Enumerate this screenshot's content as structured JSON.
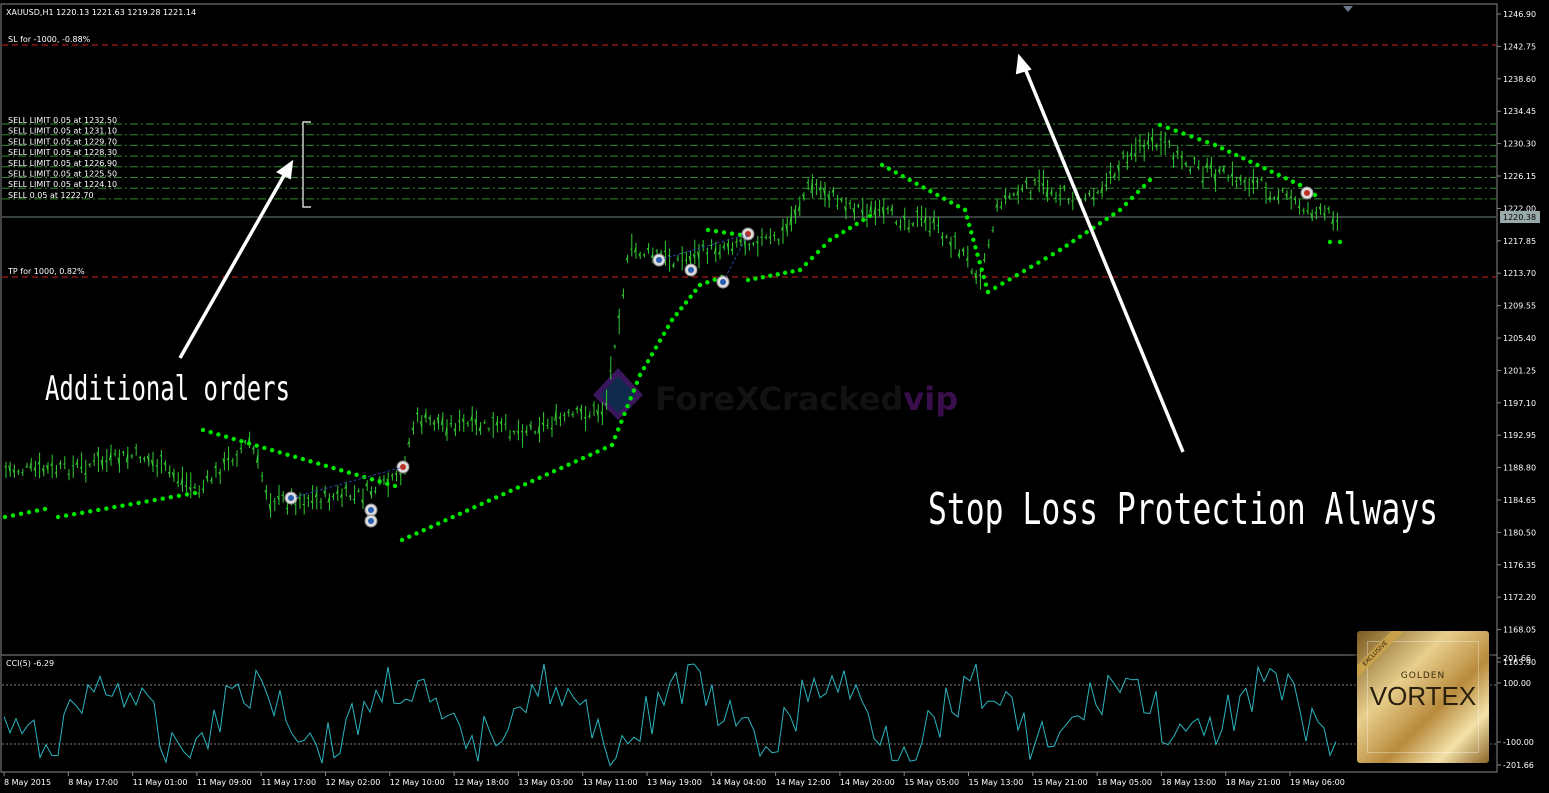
{
  "header": {
    "symbol_info": "XAUUSD,H1  1220.13 1221.63 1219.28 1221.14",
    "sl_label": "SL for -1000, -0.88%",
    "tp_label": "TP for 1000, 0.82%"
  },
  "orders": [
    "SELL LIMIT 0.05 at 1232.50",
    "SELL LIMIT 0.05 at 1231.10",
    "SELL LIMIT 0.05 at 1229.70",
    "SELL LIMIT 0.05 at 1228.30",
    "SELL LIMIT 0.05 at 1226.90",
    "SELL LIMIT 0.05 at 1225.50",
    "SELL LIMIT 0.05 at 1224.10",
    "SELL 0.05 at 1222.70"
  ],
  "price_axis": [
    "1246.90",
    "1242.75",
    "1238.60",
    "1234.45",
    "1230.30",
    "1226.15",
    "1222.00",
    "1217.85",
    "1213.70",
    "1209.55",
    "1205.40",
    "1201.25",
    "1197.10",
    "1192.95",
    "1188.80",
    "1184.65",
    "1180.50",
    "1176.35",
    "1172.20",
    "1168.05",
    "1163.90"
  ],
  "current_price": "1220.38",
  "sub_panel": {
    "label": "CCI(5) -6.29",
    "axis": [
      "201.66",
      "100.00",
      "-100.00",
      "-201.66"
    ]
  },
  "time_axis": [
    "8 May 2015",
    "8 May 17:00",
    "11 May 01:00",
    "11 May 09:00",
    "11 May 17:00",
    "12 May 02:00",
    "12 May 10:00",
    "12 May 18:00",
    "13 May 03:00",
    "13 May 11:00",
    "13 May 19:00",
    "14 May 04:00",
    "14 May 12:00",
    "14 May 20:00",
    "15 May 05:00",
    "15 May 13:00",
    "15 May 21:00",
    "18 May 05:00",
    "18 May 13:00",
    "18 May 21:00",
    "19 May 06:00"
  ],
  "annotations": {
    "left": "Additional orders",
    "right": "Stop Loss Protection Always"
  },
  "watermark": {
    "part1": "ForeXCracked",
    "part2": "vip"
  },
  "badge": {
    "ribbon": "EXCLUSIVE",
    "line1": "GOLDEN",
    "line2": "VORTEX"
  },
  "colors": {
    "candle": "#33cc33",
    "sar": "#00e600",
    "order_line": "#2e8b2e",
    "sl_tp_line": "#cc2222",
    "cci": "#2bb5c0",
    "watermark_purple": "#8a2be2"
  }
}
